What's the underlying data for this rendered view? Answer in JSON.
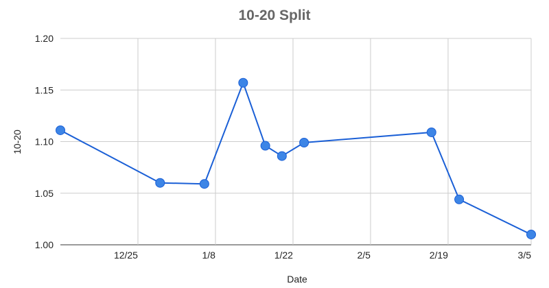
{
  "chart_data": {
    "type": "line",
    "title": "10-20 Split",
    "xlabel": "Date",
    "ylabel": "10-20",
    "grid": true,
    "legend": "none",
    "xlim": [
      "2023-12-11",
      "2024-03-05"
    ],
    "ylim": [
      1.0,
      1.2
    ],
    "x_ticks": [
      {
        "label": "12/25",
        "date": "2023-12-25"
      },
      {
        "label": "1/8",
        "date": "2024-01-08"
      },
      {
        "label": "1/22",
        "date": "2024-01-22"
      },
      {
        "label": "2/5",
        "date": "2024-02-05"
      },
      {
        "label": "2/19",
        "date": "2024-02-19"
      },
      {
        "label": "3/5",
        "date": "2024-03-05"
      }
    ],
    "y_ticks": [
      "1.00",
      "1.05",
      "1.10",
      "1.15",
      "1.20"
    ],
    "series": [
      {
        "color": "#1a5fd6",
        "marker_color": "#3d85e6",
        "x": [
          "2023-12-11",
          "2023-12-29",
          "2024-01-06",
          "2024-01-13",
          "2024-01-17",
          "2024-01-20",
          "2024-01-24",
          "2024-02-16",
          "2024-02-21",
          "2024-03-05"
        ],
        "values": [
          1.111,
          1.06,
          1.059,
          1.157,
          1.096,
          1.086,
          1.099,
          1.109,
          1.044,
          1.01
        ]
      }
    ]
  }
}
